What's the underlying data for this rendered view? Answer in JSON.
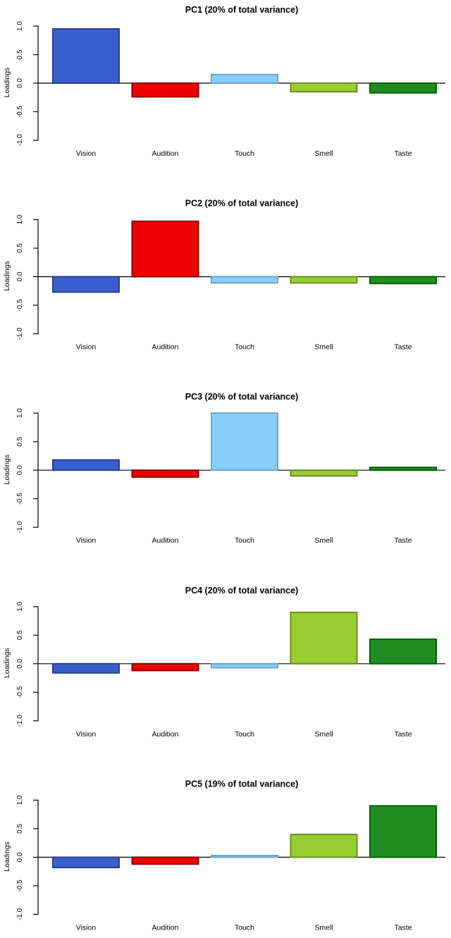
{
  "figure": {
    "background": "#FFFFFF",
    "text_color": "#000000",
    "axis_color": "#000000"
  },
  "chart_data": {
    "type": "bar",
    "layout": "5 vertically stacked panels, shared category axis, zero baseline line across full width",
    "categories": [
      "Vision",
      "Audition",
      "Touch",
      "Smell",
      "Taste"
    ],
    "ylabel": "Loadings",
    "ylim": [
      -1,
      1
    ],
    "ytick_labels": [
      "1.0",
      "0.5",
      "0.0",
      "-0.5",
      "-1.0"
    ],
    "ytick_values": [
      1,
      0.5,
      0,
      -0.5,
      -1
    ],
    "grid": "off",
    "legend": "none",
    "bar_colors": [
      {
        "category": "Vision",
        "fill": "#3A5FCD",
        "stroke": "#27408B"
      },
      {
        "category": "Audition",
        "fill": "#EE0000",
        "stroke": "#8B0000"
      },
      {
        "category": "Touch",
        "fill": "#87CEFA",
        "stroke": "#6CA6CD"
      },
      {
        "category": "Smell",
        "fill": "#9ACD32",
        "stroke": "#6B8E23"
      },
      {
        "category": "Taste",
        "fill": "#228B22",
        "stroke": "#006400"
      }
    ],
    "panels": [
      {
        "title": "PC1 (20% of total variance)",
        "values": [
          0.95,
          -0.24,
          0.15,
          -0.15,
          -0.17
        ]
      },
      {
        "title": "PC2 (20% of total variance)",
        "values": [
          -0.27,
          0.97,
          -0.11,
          -0.11,
          -0.12
        ]
      },
      {
        "title": "PC3 (20% of total variance)",
        "values": [
          0.18,
          -0.12,
          1.0,
          -0.1,
          0.05
        ]
      },
      {
        "title": "PC4 (20% of total variance)",
        "values": [
          -0.16,
          -0.12,
          -0.07,
          0.9,
          0.43
        ]
      },
      {
        "title": "PC5 (19% of total variance)",
        "values": [
          -0.18,
          -0.12,
          0.03,
          0.4,
          0.9
        ]
      }
    ]
  }
}
